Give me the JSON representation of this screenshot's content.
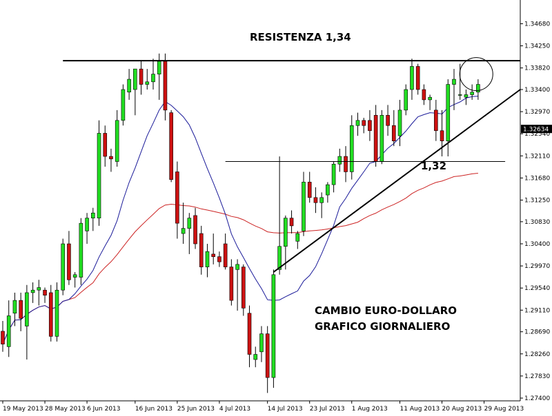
{
  "chart_data": {
    "type": "candlestick",
    "instrument": "CAMBIO EURO-DOLLARO",
    "timeframe": "GRAFICO GIORNALIERO",
    "ylim": [
      1.274,
      1.349
    ],
    "y_ticks": [
      "1.34680",
      "1.34250",
      "1.33820",
      "1.33400",
      "1.32970",
      "1.32540",
      "1.32110",
      "1.31680",
      "1.31250",
      "1.30830",
      "1.30400",
      "1.29970",
      "1.29540",
      "1.29110",
      "1.28690",
      "1.28260",
      "1.27830",
      "1.27400"
    ],
    "x_ticks": [
      "19 May 2013",
      "28 May 2013",
      "6 Jun 2013",
      "16 Jun 2013",
      "25 Jun 2013",
      "4 Jul 2013",
      "14 Jul 2013",
      "23 Jul 2013",
      "1 Aug 2013",
      "11 Aug 2013",
      "20 Aug 2013",
      "29 Aug 2013"
    ],
    "x_tick_index": [
      0,
      7,
      14,
      22,
      29,
      36,
      44,
      51,
      58,
      66,
      73,
      80
    ],
    "current_price": "1.32634",
    "candles": [
      {
        "o": 1.287,
        "h": 1.289,
        "l": 1.283,
        "c": 1.2845
      },
      {
        "o": 1.284,
        "h": 1.293,
        "l": 1.282,
        "c": 1.29
      },
      {
        "o": 1.2905,
        "h": 1.2945,
        "l": 1.288,
        "c": 1.293
      },
      {
        "o": 1.293,
        "h": 1.2945,
        "l": 1.287,
        "c": 1.2895
      },
      {
        "o": 1.288,
        "h": 1.296,
        "l": 1.2815,
        "c": 1.2945
      },
      {
        "o": 1.2945,
        "h": 1.2965,
        "l": 1.2925,
        "c": 1.295
      },
      {
        "o": 1.295,
        "h": 1.297,
        "l": 1.292,
        "c": 1.2955
      },
      {
        "o": 1.295,
        "h": 1.2955,
        "l": 1.2925,
        "c": 1.294
      },
      {
        "o": 1.2945,
        "h": 1.296,
        "l": 1.285,
        "c": 1.286
      },
      {
        "o": 1.286,
        "h": 1.2965,
        "l": 1.285,
        "c": 1.295
      },
      {
        "o": 1.295,
        "h": 1.305,
        "l": 1.294,
        "c": 1.304
      },
      {
        "o": 1.304,
        "h": 1.3065,
        "l": 1.296,
        "c": 1.297
      },
      {
        "o": 1.2975,
        "h": 1.2985,
        "l": 1.2955,
        "c": 1.298
      },
      {
        "o": 1.2975,
        "h": 1.309,
        "l": 1.296,
        "c": 1.308
      },
      {
        "o": 1.3065,
        "h": 1.31,
        "l": 1.304,
        "c": 1.309
      },
      {
        "o": 1.309,
        "h": 1.311,
        "l": 1.3065,
        "c": 1.31
      },
      {
        "o": 1.309,
        "h": 1.328,
        "l": 1.3075,
        "c": 1.3255
      },
      {
        "o": 1.3255,
        "h": 1.327,
        "l": 1.319,
        "c": 1.321
      },
      {
        "o": 1.321,
        "h": 1.3225,
        "l": 1.318,
        "c": 1.3205
      },
      {
        "o": 1.32,
        "h": 1.33,
        "l": 1.319,
        "c": 1.328
      },
      {
        "o": 1.328,
        "h": 1.335,
        "l": 1.327,
        "c": 1.334
      },
      {
        "o": 1.3335,
        "h": 1.338,
        "l": 1.332,
        "c": 1.336
      },
      {
        "o": 1.334,
        "h": 1.338,
        "l": 1.329,
        "c": 1.338
      },
      {
        "o": 1.338,
        "h": 1.3395,
        "l": 1.333,
        "c": 1.335
      },
      {
        "o": 1.335,
        "h": 1.338,
        "l": 1.334,
        "c": 1.3355
      },
      {
        "o": 1.3355,
        "h": 1.34,
        "l": 1.334,
        "c": 1.337
      },
      {
        "o": 1.337,
        "h": 1.341,
        "l": 1.332,
        "c": 1.3395
      },
      {
        "o": 1.3395,
        "h": 1.341,
        "l": 1.328,
        "c": 1.33
      },
      {
        "o": 1.3295,
        "h": 1.33,
        "l": 1.316,
        "c": 1.3165
      },
      {
        "o": 1.318,
        "h": 1.32,
        "l": 1.305,
        "c": 1.308
      },
      {
        "o": 1.306,
        "h": 1.312,
        "l": 1.304,
        "c": 1.307
      },
      {
        "o": 1.307,
        "h": 1.31,
        "l": 1.302,
        "c": 1.309
      },
      {
        "o": 1.3095,
        "h": 1.311,
        "l": 1.303,
        "c": 1.304
      },
      {
        "o": 1.306,
        "h": 1.3075,
        "l": 1.298,
        "c": 1.2995
      },
      {
        "o": 1.2995,
        "h": 1.304,
        "l": 1.2975,
        "c": 1.3025
      },
      {
        "o": 1.302,
        "h": 1.306,
        "l": 1.3,
        "c": 1.3015
      },
      {
        "o": 1.3015,
        "h": 1.3025,
        "l": 1.2995,
        "c": 1.3005
      },
      {
        "o": 1.304,
        "h": 1.306,
        "l": 1.299,
        "c": 1.2995
      },
      {
        "o": 1.2995,
        "h": 1.301,
        "l": 1.292,
        "c": 1.293
      },
      {
        "o": 1.299,
        "h": 1.301,
        "l": 1.291,
        "c": 1.3
      },
      {
        "o": 1.2995,
        "h": 1.3,
        "l": 1.29,
        "c": 1.2915
      },
      {
        "o": 1.2905,
        "h": 1.292,
        "l": 1.28,
        "c": 1.2825
      },
      {
        "o": 1.2815,
        "h": 1.284,
        "l": 1.28,
        "c": 1.2825
      },
      {
        "o": 1.283,
        "h": 1.288,
        "l": 1.281,
        "c": 1.2865
      },
      {
        "o": 1.2865,
        "h": 1.288,
        "l": 1.275,
        "c": 1.278
      },
      {
        "o": 1.278,
        "h": 1.299,
        "l": 1.276,
        "c": 1.298
      },
      {
        "o": 1.299,
        "h": 1.321,
        "l": 1.298,
        "c": 1.3035
      },
      {
        "o": 1.3035,
        "h": 1.3095,
        "l": 1.299,
        "c": 1.309
      },
      {
        "o": 1.309,
        "h": 1.3105,
        "l": 1.306,
        "c": 1.3075
      },
      {
        "o": 1.3045,
        "h": 1.3065,
        "l": 1.303,
        "c": 1.306
      },
      {
        "o": 1.3065,
        "h": 1.318,
        "l": 1.3055,
        "c": 1.316
      },
      {
        "o": 1.316,
        "h": 1.318,
        "l": 1.312,
        "c": 1.313
      },
      {
        "o": 1.313,
        "h": 1.315,
        "l": 1.31,
        "c": 1.312
      },
      {
        "o": 1.312,
        "h": 1.314,
        "l": 1.309,
        "c": 1.313
      },
      {
        "o": 1.3135,
        "h": 1.316,
        "l": 1.312,
        "c": 1.3155
      },
      {
        "o": 1.3155,
        "h": 1.32,
        "l": 1.314,
        "c": 1.3195
      },
      {
        "o": 1.3195,
        "h": 1.3225,
        "l": 1.318,
        "c": 1.321
      },
      {
        "o": 1.321,
        "h": 1.323,
        "l": 1.316,
        "c": 1.318
      },
      {
        "o": 1.318,
        "h": 1.329,
        "l": 1.3165,
        "c": 1.327
      },
      {
        "o": 1.327,
        "h": 1.3295,
        "l": 1.325,
        "c": 1.328
      },
      {
        "o": 1.328,
        "h": 1.3285,
        "l": 1.3255,
        "c": 1.327
      },
      {
        "o": 1.328,
        "h": 1.33,
        "l": 1.324,
        "c": 1.326
      },
      {
        "o": 1.329,
        "h": 1.331,
        "l": 1.319,
        "c": 1.32
      },
      {
        "o": 1.32,
        "h": 1.33,
        "l": 1.3195,
        "c": 1.329
      },
      {
        "o": 1.329,
        "h": 1.331,
        "l": 1.325,
        "c": 1.327
      },
      {
        "o": 1.327,
        "h": 1.33,
        "l": 1.323,
        "c": 1.324
      },
      {
        "o": 1.325,
        "h": 1.332,
        "l": 1.323,
        "c": 1.33
      },
      {
        "o": 1.33,
        "h": 1.335,
        "l": 1.329,
        "c": 1.334
      },
      {
        "o": 1.334,
        "h": 1.34,
        "l": 1.332,
        "c": 1.3385
      },
      {
        "o": 1.3385,
        "h": 1.339,
        "l": 1.333,
        "c": 1.334
      },
      {
        "o": 1.334,
        "h": 1.335,
        "l": 1.331,
        "c": 1.332
      },
      {
        "o": 1.332,
        "h": 1.333,
        "l": 1.33,
        "c": 1.3325
      },
      {
        "o": 1.33,
        "h": 1.332,
        "l": 1.324,
        "c": 1.326
      },
      {
        "o": 1.326,
        "h": 1.33,
        "l": 1.321,
        "c": 1.324
      },
      {
        "o": 1.324,
        "h": 1.336,
        "l": 1.321,
        "c": 1.335
      },
      {
        "o": 1.335,
        "h": 1.338,
        "l": 1.33,
        "c": 1.336
      },
      {
        "o": 1.333,
        "h": 1.339,
        "l": 1.332,
        "c": 1.333
      },
      {
        "o": 1.3325,
        "h": 1.334,
        "l": 1.331,
        "c": 1.333
      },
      {
        "o": 1.333,
        "h": 1.335,
        "l": 1.332,
        "c": 1.3335
      },
      {
        "o": 1.3335,
        "h": 1.336,
        "l": 1.332,
        "c": 1.335
      }
    ],
    "annotations": {
      "resistance_label": "RESISTENZA 1,34",
      "support_label": "1,32",
      "title_line1": "CAMBIO EURO-DOLLARO",
      "title_line2": "GRAFICO GIORNALIERO"
    }
  }
}
